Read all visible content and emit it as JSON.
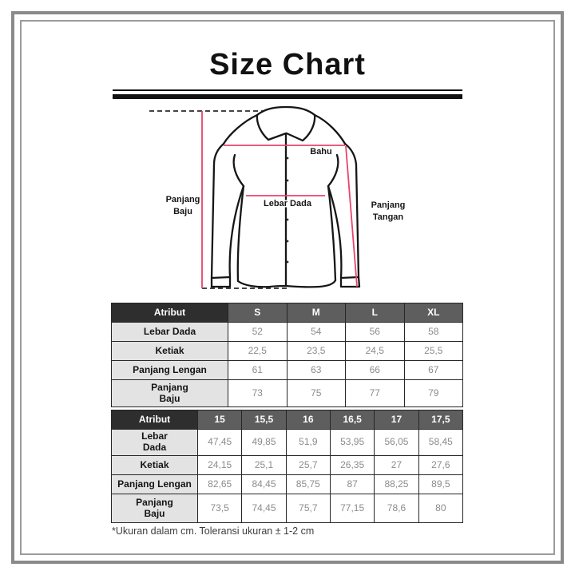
{
  "title": "Size Chart",
  "diagram": {
    "bahu": "Bahu",
    "lebar_dada": "Lebar Dada",
    "panjang_baju_1": "Panjang",
    "panjang_baju_2": "Baju",
    "panjang_tangan_1": "Panjang",
    "panjang_tangan_2": "Tangan",
    "line_color": "#e8446b",
    "outline_color": "#161616"
  },
  "table_letter_sizes": {
    "header": [
      "Atribut",
      "S",
      "M",
      "L",
      "XL"
    ],
    "rows": [
      {
        "label": "Lebar Dada",
        "values": [
          "52",
          "54",
          "56",
          "58"
        ]
      },
      {
        "label": "Ketiak",
        "values": [
          "22,5",
          "23,5",
          "24,5",
          "25,5"
        ]
      },
      {
        "label": "Panjang Lengan",
        "values": [
          "61",
          "63",
          "66",
          "67"
        ]
      },
      {
        "label": "Panjang\nBaju",
        "values": [
          "73",
          "75",
          "77",
          "79"
        ]
      }
    ]
  },
  "table_numeric_sizes": {
    "header": [
      "Atribut",
      "15",
      "15,5",
      "16",
      "16,5",
      "17",
      "17,5"
    ],
    "rows": [
      {
        "label": "Lebar\nDada",
        "values": [
          "47,45",
          "49,85",
          "51,9",
          "53,95",
          "56,05",
          "58,45"
        ]
      },
      {
        "label": "Ketiak",
        "values": [
          "24,15",
          "25,1",
          "25,7",
          "26,35",
          "27",
          "27,6"
        ]
      },
      {
        "label": "Panjang Lengan",
        "values": [
          "82,65",
          "84,45",
          "85,75",
          "87",
          "88,25",
          "89,5"
        ]
      },
      {
        "label": "Panjang\nBaju",
        "values": [
          "73,5",
          "74,45",
          "75,7",
          "77,15",
          "78,6",
          "80"
        ]
      }
    ]
  },
  "footnote": "*Ukuran dalam cm. Toleransi ukuran ± 1-2 cm"
}
